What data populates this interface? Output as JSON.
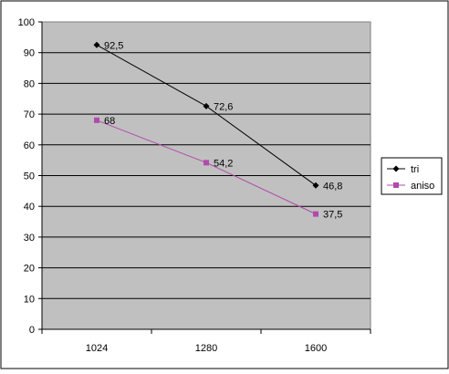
{
  "chart_data": {
    "type": "line",
    "title": "",
    "xlabel": "",
    "ylabel": "",
    "categories": [
      "1024",
      "1280",
      "1600"
    ],
    "ylim": [
      0,
      100
    ],
    "yticks": [
      0,
      10,
      20,
      30,
      40,
      50,
      60,
      70,
      80,
      90,
      100
    ],
    "grid": "horizontal",
    "plot_background": "#c0c0c0",
    "plot_border_color": "#808080",
    "legend_position": "right",
    "series": [
      {
        "name": "tri",
        "values": [
          92.5,
          72.6,
          46.8
        ],
        "labels": [
          "92,5",
          "72,6",
          "46,8"
        ],
        "color": "#000000",
        "marker": "diamond"
      },
      {
        "name": "aniso",
        "values": [
          68,
          54.2,
          37.5
        ],
        "labels": [
          "68",
          "54,2",
          "37,5"
        ],
        "color": "#b14bab",
        "marker": "square"
      }
    ]
  }
}
